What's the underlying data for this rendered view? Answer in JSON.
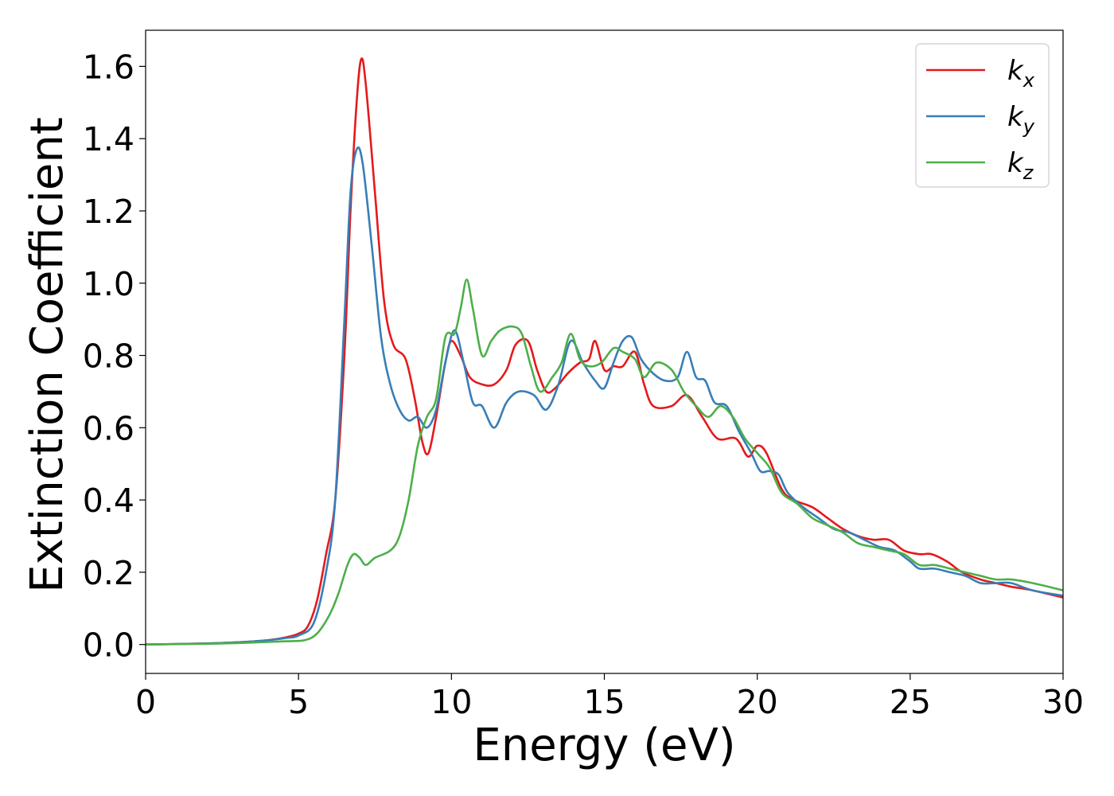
{
  "chart_data": {
    "type": "line",
    "title": "",
    "xlabel": "Energy (eV)",
    "ylabel": "Extinction Coefficient",
    "xlim": [
      0,
      30
    ],
    "ylim": [
      -0.08,
      1.7
    ],
    "xticks": [
      0,
      5,
      10,
      15,
      20,
      25,
      30
    ],
    "xtick_labels": [
      "0",
      "5",
      "10",
      "15",
      "20",
      "25",
      "30"
    ],
    "yticks": [
      0.0,
      0.2,
      0.4,
      0.6,
      0.8,
      1.0,
      1.2,
      1.4,
      1.6
    ],
    "ytick_labels": [
      "0.0",
      "0.2",
      "0.4",
      "0.6",
      "0.8",
      "1.0",
      "1.2",
      "1.4",
      "1.6"
    ],
    "grid": false,
    "legend_position": "top-right",
    "series": [
      {
        "name": "k_x",
        "label_main": "k",
        "label_sub": "x",
        "color": "#e41a1c",
        "points": [
          [
            0,
            0
          ],
          [
            2,
            0.003
          ],
          [
            3,
            0.006
          ],
          [
            4,
            0.012
          ],
          [
            4.6,
            0.02
          ],
          [
            5,
            0.03
          ],
          [
            5.3,
            0.05
          ],
          [
            5.6,
            0.12
          ],
          [
            5.9,
            0.25
          ],
          [
            6.2,
            0.4
          ],
          [
            6.5,
            0.8
          ],
          [
            6.7,
            1.2
          ],
          [
            6.9,
            1.5
          ],
          [
            7.05,
            1.62
          ],
          [
            7.2,
            1.55
          ],
          [
            7.5,
            1.25
          ],
          [
            7.8,
            0.95
          ],
          [
            8.1,
            0.83
          ],
          [
            8.5,
            0.79
          ],
          [
            8.8,
            0.68
          ],
          [
            9.05,
            0.56
          ],
          [
            9.25,
            0.53
          ],
          [
            9.5,
            0.63
          ],
          [
            9.8,
            0.78
          ],
          [
            10.0,
            0.84
          ],
          [
            10.3,
            0.8
          ],
          [
            10.6,
            0.74
          ],
          [
            11.0,
            0.72
          ],
          [
            11.4,
            0.72
          ],
          [
            11.8,
            0.76
          ],
          [
            12.1,
            0.83
          ],
          [
            12.5,
            0.84
          ],
          [
            12.8,
            0.76
          ],
          [
            13.1,
            0.7
          ],
          [
            13.4,
            0.71
          ],
          [
            13.8,
            0.75
          ],
          [
            14.2,
            0.78
          ],
          [
            14.5,
            0.79
          ],
          [
            14.7,
            0.84
          ],
          [
            15.0,
            0.76
          ],
          [
            15.3,
            0.77
          ],
          [
            15.6,
            0.77
          ],
          [
            16.0,
            0.81
          ],
          [
            16.3,
            0.72
          ],
          [
            16.6,
            0.66
          ],
          [
            17.2,
            0.66
          ],
          [
            17.7,
            0.69
          ],
          [
            18.2,
            0.63
          ],
          [
            18.7,
            0.57
          ],
          [
            19.3,
            0.57
          ],
          [
            19.7,
            0.52
          ],
          [
            20.0,
            0.55
          ],
          [
            20.3,
            0.53
          ],
          [
            20.8,
            0.43
          ],
          [
            21.2,
            0.4
          ],
          [
            21.8,
            0.38
          ],
          [
            22.3,
            0.35
          ],
          [
            22.8,
            0.32
          ],
          [
            23.3,
            0.3
          ],
          [
            23.8,
            0.29
          ],
          [
            24.3,
            0.29
          ],
          [
            24.8,
            0.26
          ],
          [
            25.3,
            0.25
          ],
          [
            25.7,
            0.25
          ],
          [
            26.2,
            0.23
          ],
          [
            26.7,
            0.2
          ],
          [
            27.3,
            0.18
          ],
          [
            27.8,
            0.17
          ],
          [
            28.3,
            0.16
          ],
          [
            29,
            0.15
          ],
          [
            30,
            0.13
          ]
        ]
      },
      {
        "name": "k_y",
        "label_main": "k",
        "label_sub": "y",
        "color": "#377eb8",
        "points": [
          [
            0,
            0
          ],
          [
            2,
            0.003
          ],
          [
            3,
            0.006
          ],
          [
            4,
            0.012
          ],
          [
            4.6,
            0.018
          ],
          [
            5,
            0.025
          ],
          [
            5.5,
            0.06
          ],
          [
            5.9,
            0.2
          ],
          [
            6.2,
            0.4
          ],
          [
            6.5,
            0.9
          ],
          [
            6.7,
            1.25
          ],
          [
            6.9,
            1.37
          ],
          [
            7.1,
            1.33
          ],
          [
            7.4,
            1.1
          ],
          [
            7.7,
            0.85
          ],
          [
            8.0,
            0.72
          ],
          [
            8.3,
            0.65
          ],
          [
            8.6,
            0.62
          ],
          [
            8.9,
            0.63
          ],
          [
            9.2,
            0.6
          ],
          [
            9.5,
            0.65
          ],
          [
            9.8,
            0.78
          ],
          [
            10.1,
            0.87
          ],
          [
            10.4,
            0.78
          ],
          [
            10.7,
            0.67
          ],
          [
            11.0,
            0.66
          ],
          [
            11.4,
            0.6
          ],
          [
            11.8,
            0.67
          ],
          [
            12.2,
            0.7
          ],
          [
            12.7,
            0.69
          ],
          [
            13.1,
            0.65
          ],
          [
            13.5,
            0.72
          ],
          [
            13.9,
            0.84
          ],
          [
            14.3,
            0.78
          ],
          [
            14.7,
            0.73
          ],
          [
            15.0,
            0.71
          ],
          [
            15.3,
            0.78
          ],
          [
            15.6,
            0.84
          ],
          [
            15.9,
            0.85
          ],
          [
            16.2,
            0.79
          ],
          [
            16.6,
            0.75
          ],
          [
            17.0,
            0.73
          ],
          [
            17.4,
            0.74
          ],
          [
            17.7,
            0.81
          ],
          [
            18.0,
            0.74
          ],
          [
            18.3,
            0.73
          ],
          [
            18.6,
            0.67
          ],
          [
            19.0,
            0.66
          ],
          [
            19.4,
            0.59
          ],
          [
            19.8,
            0.53
          ],
          [
            20.1,
            0.48
          ],
          [
            20.4,
            0.48
          ],
          [
            20.7,
            0.47
          ],
          [
            21.0,
            0.42
          ],
          [
            21.5,
            0.38
          ],
          [
            22.0,
            0.35
          ],
          [
            22.5,
            0.32
          ],
          [
            23.0,
            0.31
          ],
          [
            23.5,
            0.29
          ],
          [
            24.0,
            0.27
          ],
          [
            24.5,
            0.26
          ],
          [
            25.0,
            0.23
          ],
          [
            25.3,
            0.21
          ],
          [
            25.8,
            0.21
          ],
          [
            26.3,
            0.2
          ],
          [
            26.8,
            0.19
          ],
          [
            27.3,
            0.17
          ],
          [
            27.8,
            0.17
          ],
          [
            28.3,
            0.17
          ],
          [
            29,
            0.15
          ],
          [
            30,
            0.135
          ]
        ]
      },
      {
        "name": "k_z",
        "label_main": "k",
        "label_sub": "z",
        "color": "#4daf4a",
        "points": [
          [
            0,
            0
          ],
          [
            2,
            0.002
          ],
          [
            3,
            0.004
          ],
          [
            4,
            0.007
          ],
          [
            4.6,
            0.009
          ],
          [
            5.2,
            0.012
          ],
          [
            5.6,
            0.03
          ],
          [
            6.0,
            0.08
          ],
          [
            6.3,
            0.14
          ],
          [
            6.6,
            0.22
          ],
          [
            6.8,
            0.25
          ],
          [
            7.0,
            0.24
          ],
          [
            7.2,
            0.22
          ],
          [
            7.5,
            0.24
          ],
          [
            8.0,
            0.26
          ],
          [
            8.3,
            0.3
          ],
          [
            8.6,
            0.4
          ],
          [
            8.9,
            0.55
          ],
          [
            9.2,
            0.63
          ],
          [
            9.5,
            0.68
          ],
          [
            9.8,
            0.85
          ],
          [
            10.1,
            0.86
          ],
          [
            10.3,
            0.93
          ],
          [
            10.5,
            1.01
          ],
          [
            10.7,
            0.93
          ],
          [
            11.0,
            0.8
          ],
          [
            11.3,
            0.84
          ],
          [
            11.6,
            0.87
          ],
          [
            12.0,
            0.88
          ],
          [
            12.3,
            0.86
          ],
          [
            12.6,
            0.77
          ],
          [
            12.9,
            0.7
          ],
          [
            13.3,
            0.74
          ],
          [
            13.6,
            0.78
          ],
          [
            13.9,
            0.86
          ],
          [
            14.2,
            0.79
          ],
          [
            14.5,
            0.77
          ],
          [
            14.9,
            0.78
          ],
          [
            15.3,
            0.82
          ],
          [
            15.6,
            0.81
          ],
          [
            16.0,
            0.79
          ],
          [
            16.3,
            0.74
          ],
          [
            16.7,
            0.78
          ],
          [
            17.2,
            0.76
          ],
          [
            17.6,
            0.7
          ],
          [
            18.0,
            0.66
          ],
          [
            18.4,
            0.63
          ],
          [
            18.8,
            0.66
          ],
          [
            19.2,
            0.63
          ],
          [
            19.6,
            0.57
          ],
          [
            20.0,
            0.53
          ],
          [
            20.4,
            0.49
          ],
          [
            20.8,
            0.42
          ],
          [
            21.3,
            0.39
          ],
          [
            21.8,
            0.35
          ],
          [
            22.3,
            0.33
          ],
          [
            22.8,
            0.31
          ],
          [
            23.3,
            0.28
          ],
          [
            23.8,
            0.27
          ],
          [
            24.3,
            0.26
          ],
          [
            24.8,
            0.25
          ],
          [
            25.3,
            0.22
          ],
          [
            25.8,
            0.22
          ],
          [
            26.3,
            0.21
          ],
          [
            26.8,
            0.2
          ],
          [
            27.3,
            0.19
          ],
          [
            27.8,
            0.18
          ],
          [
            28.3,
            0.18
          ],
          [
            29,
            0.17
          ],
          [
            30,
            0.15
          ]
        ]
      }
    ]
  }
}
